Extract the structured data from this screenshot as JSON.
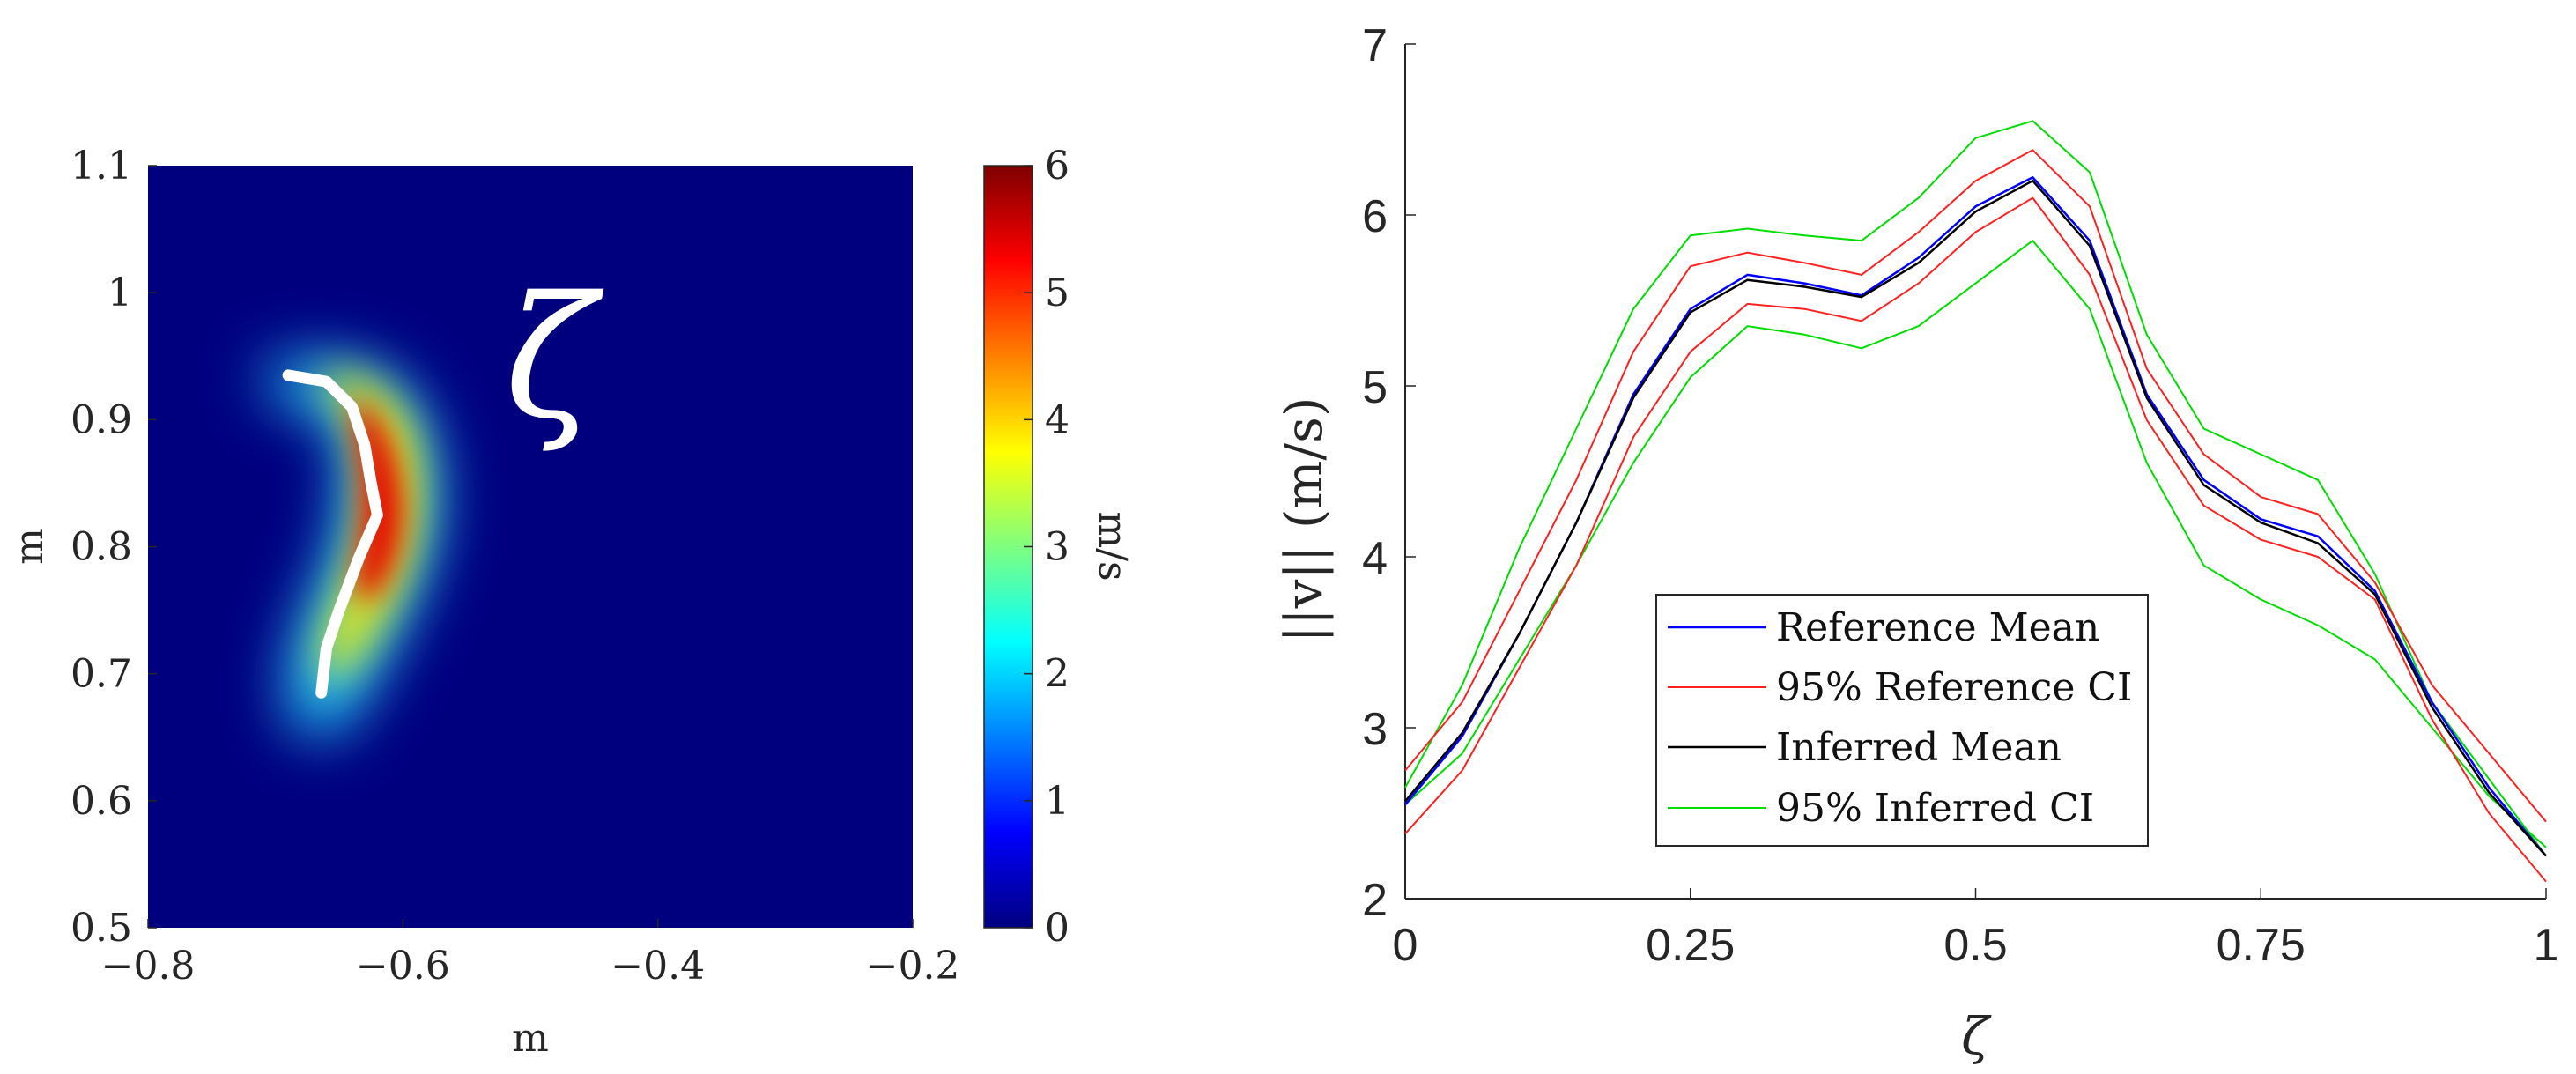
{
  "chart_data": [
    {
      "type": "heatmap",
      "title": "",
      "xlabel": "m",
      "ylabel": "m",
      "xlim": [
        -0.8,
        -0.2
      ],
      "ylim": [
        0.5,
        1.1
      ],
      "xticks": [
        -0.8,
        -0.6,
        -0.4,
        -0.2
      ],
      "xtick_labels": [
        "−0.8",
        "−0.6",
        "−0.4",
        "−0.2"
      ],
      "yticks": [
        0.5,
        0.6,
        0.7,
        0.8,
        0.9,
        1.0,
        1.1
      ],
      "ytick_labels": [
        "0.5",
        "0.6",
        "0.7",
        "0.8",
        "0.9",
        "1",
        "1.1"
      ],
      "colorbar": {
        "label": "m/s",
        "range": [
          0,
          6
        ],
        "ticks": [
          0,
          1,
          2,
          3,
          4,
          5,
          6
        ],
        "tick_labels": [
          "0",
          "1",
          "2",
          "3",
          "4",
          "5",
          "6"
        ],
        "colormap": "jet"
      },
      "background_value": 0,
      "blob_peak_value": 6,
      "path_points": [
        {
          "x": -0.69,
          "y": 0.935
        },
        {
          "x": -0.66,
          "y": 0.93
        },
        {
          "x": -0.64,
          "y": 0.91
        },
        {
          "x": -0.63,
          "y": 0.88
        },
        {
          "x": -0.625,
          "y": 0.85
        },
        {
          "x": -0.62,
          "y": 0.825
        },
        {
          "x": -0.635,
          "y": 0.79
        },
        {
          "x": -0.65,
          "y": 0.75
        },
        {
          "x": -0.66,
          "y": 0.72
        },
        {
          "x": -0.664,
          "y": 0.685
        }
      ],
      "annotation": "ζ"
    },
    {
      "type": "line",
      "title": "",
      "xlabel": "ζ",
      "ylabel": "||v|| (m/s)",
      "xlim": [
        0,
        1
      ],
      "ylim": [
        2,
        7
      ],
      "xticks": [
        0,
        0.25,
        0.5,
        0.75,
        1
      ],
      "xtick_labels": [
        "0",
        "0.25",
        "0.5",
        "0.75",
        "1"
      ],
      "yticks": [
        2,
        3,
        4,
        5,
        6,
        7
      ],
      "ytick_labels": [
        "2",
        "3",
        "4",
        "5",
        "6",
        "7"
      ],
      "legend_position": "bottom-center",
      "x": [
        0,
        0.05,
        0.1,
        0.15,
        0.2,
        0.25,
        0.3,
        0.35,
        0.4,
        0.45,
        0.5,
        0.55,
        0.6,
        0.65,
        0.7,
        0.75,
        0.8,
        0.85,
        0.9,
        0.95,
        1
      ],
      "series": [
        {
          "name": "Reference Mean",
          "color": "#0000ff",
          "width": 2.5,
          "values": [
            2.55,
            2.95,
            3.55,
            4.2,
            4.95,
            5.45,
            5.65,
            5.6,
            5.53,
            5.75,
            6.05,
            6.22,
            5.85,
            4.95,
            4.45,
            4.22,
            4.12,
            3.8,
            3.15,
            2.65,
            2.25
          ]
        },
        {
          "name": "95% Reference CI",
          "color": "#ff2020",
          "width": 2,
          "values": [
            2.75,
            3.15,
            3.8,
            4.45,
            5.2,
            5.7,
            5.78,
            5.72,
            5.65,
            5.9,
            6.2,
            6.38,
            6.05,
            5.1,
            4.6,
            4.35,
            4.25,
            3.85,
            3.25,
            2.85,
            2.45
          ]
        },
        {
          "name": "95% Reference CI",
          "color": "#ff2020",
          "width": 2,
          "legend": false,
          "values": [
            2.38,
            2.75,
            3.35,
            3.95,
            4.7,
            5.2,
            5.48,
            5.45,
            5.38,
            5.6,
            5.9,
            6.1,
            5.65,
            4.8,
            4.3,
            4.1,
            4.0,
            3.75,
            3.05,
            2.5,
            2.1
          ]
        },
        {
          "name": "Inferred Mean",
          "color": "#000000",
          "width": 2.5,
          "values": [
            2.57,
            2.97,
            3.55,
            4.2,
            4.93,
            5.43,
            5.62,
            5.58,
            5.52,
            5.72,
            6.02,
            6.2,
            5.82,
            4.93,
            4.42,
            4.2,
            4.08,
            3.78,
            3.12,
            2.62,
            2.25
          ]
        },
        {
          "name": "95% Inferred CI",
          "color": "#00dd00",
          "width": 2,
          "values": [
            2.65,
            3.25,
            4.05,
            4.75,
            5.45,
            5.88,
            5.92,
            5.88,
            5.85,
            6.1,
            6.45,
            6.55,
            6.25,
            5.3,
            4.75,
            4.6,
            4.45,
            3.9,
            3.15,
            2.7,
            2.25
          ]
        },
        {
          "name": "95% Inferred CI",
          "color": "#00dd00",
          "width": 2,
          "legend": false,
          "values": [
            2.55,
            2.85,
            3.4,
            3.95,
            4.55,
            5.05,
            5.35,
            5.3,
            5.22,
            5.35,
            5.6,
            5.85,
            5.45,
            4.55,
            3.95,
            3.75,
            3.6,
            3.4,
            3.0,
            2.6,
            2.3
          ]
        }
      ]
    }
  ],
  "colors": {
    "jet_background": "#00007f",
    "white_path": "#ffffff",
    "axis": "#262626"
  }
}
